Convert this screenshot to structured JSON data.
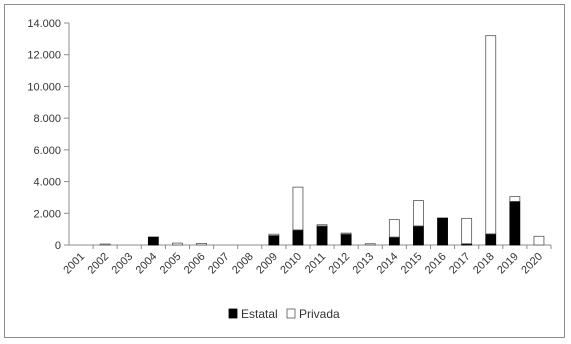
{
  "chart_data": {
    "type": "bar",
    "stacked": true,
    "categories": [
      "2001",
      "2002",
      "2003",
      "2004",
      "2005",
      "2006",
      "2007",
      "2008",
      "2009",
      "2010",
      "2011",
      "2012",
      "2013",
      "2014",
      "2015",
      "2016",
      "2017",
      "2018",
      "2019",
      "2020"
    ],
    "series": [
      {
        "name": "Estatal",
        "color": "#000000",
        "values": [
          0,
          0,
          0,
          500,
          0,
          0,
          0,
          0,
          600,
          950,
          1200,
          700,
          0,
          500,
          1200,
          1700,
          80,
          700,
          2750,
          0
        ]
      },
      {
        "name": "Privada",
        "color": "#ffffff",
        "values": [
          0,
          60,
          0,
          0,
          120,
          100,
          0,
          0,
          80,
          2700,
          80,
          50,
          80,
          1100,
          1600,
          0,
          1600,
          12500,
          300,
          550
        ]
      }
    ],
    "ylim": [
      0,
      14000
    ],
    "yticks": [
      "0",
      "2.000",
      "4.000",
      "6.000",
      "8.000",
      "10.000",
      "12.000",
      "14.000"
    ],
    "ytick_values": [
      0,
      2000,
      4000,
      6000,
      8000,
      10000,
      12000,
      14000
    ],
    "grid": false,
    "legend_position": "bottom",
    "title": "",
    "xlabel": "",
    "ylabel": ""
  }
}
